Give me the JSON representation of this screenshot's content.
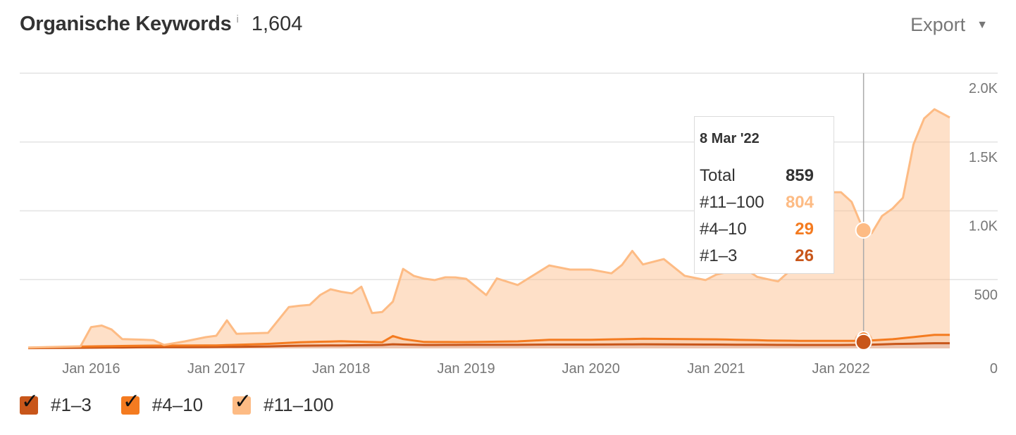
{
  "header": {
    "title": "Organische Keywords",
    "info_icon": "i",
    "count": "1,604",
    "export_label": "Export",
    "export_caret": "▼"
  },
  "tooltip": {
    "date": "8 Mar '22",
    "rows": [
      {
        "label": "Total",
        "value": "859",
        "color": "#333333"
      },
      {
        "label": "#11–100",
        "value": "804",
        "color": "#fdbb84"
      },
      {
        "label": "#4–10",
        "value": "29",
        "color": "#f47b20"
      },
      {
        "label": "#1–3",
        "value": "26",
        "color": "#c8561a"
      }
    ]
  },
  "legend": [
    {
      "label": "#1–3",
      "color": "#c8561a",
      "checked": true
    },
    {
      "label": "#4–10",
      "color": "#f47b20",
      "checked": true
    },
    {
      "label": "#11–100",
      "color": "#fdbb84",
      "checked": true
    }
  ],
  "chart_data": {
    "type": "area",
    "stacked": true,
    "title": "Organische Keywords",
    "xlabel": "",
    "ylabel": "",
    "y_axis_position": "right",
    "ylim": [
      0,
      2000
    ],
    "xlim": [
      "2015-07-01",
      "2022-11-15"
    ],
    "y_ticks": [
      0,
      500,
      1000,
      1500,
      2000
    ],
    "y_tick_labels": [
      "0",
      "500",
      "1.0K",
      "1.5K",
      "2.0K"
    ],
    "x_ticks": [
      "2016-01-01",
      "2017-01-01",
      "2018-01-01",
      "2019-01-01",
      "2020-01-01",
      "2021-01-01",
      "2022-01-01"
    ],
    "x_tick_labels": [
      "Jan 2016",
      "Jan 2017",
      "Jan 2018",
      "Jan 2019",
      "Jan 2020",
      "Jan 2021",
      "Jan 2022"
    ],
    "grid": true,
    "crosshair_date": "2022-03-08",
    "series": [
      {
        "name": "#1–3",
        "color": "#c8561a",
        "points": [
          [
            "2015-07-01",
            2
          ],
          [
            "2016-01-01",
            5
          ],
          [
            "2016-06-01",
            8
          ],
          [
            "2017-01-01",
            10
          ],
          [
            "2017-06-01",
            15
          ],
          [
            "2017-09-01",
            20
          ],
          [
            "2018-01-01",
            22
          ],
          [
            "2018-05-01",
            25
          ],
          [
            "2018-06-01",
            30
          ],
          [
            "2018-07-01",
            28
          ],
          [
            "2018-09-01",
            25
          ],
          [
            "2019-01-01",
            26
          ],
          [
            "2019-06-01",
            26
          ],
          [
            "2019-09-01",
            28
          ],
          [
            "2020-01-01",
            28
          ],
          [
            "2020-06-01",
            30
          ],
          [
            "2021-01-01",
            28
          ],
          [
            "2021-06-01",
            26
          ],
          [
            "2021-09-01",
            25
          ],
          [
            "2022-01-01",
            25
          ],
          [
            "2022-03-08",
            26
          ],
          [
            "2022-06-01",
            32
          ],
          [
            "2022-10-01",
            38
          ],
          [
            "2022-11-15",
            38
          ]
        ]
      },
      {
        "name": "#4–10",
        "color": "#f47b20",
        "points": [
          [
            "2015-07-01",
            3
          ],
          [
            "2016-01-01",
            10
          ],
          [
            "2016-06-01",
            12
          ],
          [
            "2017-01-01",
            12
          ],
          [
            "2017-06-01",
            18
          ],
          [
            "2017-09-01",
            25
          ],
          [
            "2018-01-01",
            30
          ],
          [
            "2018-05-01",
            20
          ],
          [
            "2018-06-01",
            60
          ],
          [
            "2018-07-01",
            40
          ],
          [
            "2018-09-01",
            22
          ],
          [
            "2019-01-01",
            20
          ],
          [
            "2019-06-01",
            25
          ],
          [
            "2019-09-01",
            35
          ],
          [
            "2020-01-01",
            35
          ],
          [
            "2020-06-01",
            40
          ],
          [
            "2021-01-01",
            38
          ],
          [
            "2021-06-01",
            32
          ],
          [
            "2021-09-01",
            30
          ],
          [
            "2022-01-01",
            30
          ],
          [
            "2022-03-08",
            29
          ],
          [
            "2022-06-01",
            35
          ],
          [
            "2022-10-01",
            60
          ],
          [
            "2022-11-15",
            60
          ]
        ]
      },
      {
        "name": "#11–100",
        "color": "#fdbb84",
        "points": [
          [
            "2015-07-01",
            1
          ],
          [
            "2015-12-01",
            2
          ],
          [
            "2016-01-01",
            140
          ],
          [
            "2016-02-01",
            150
          ],
          [
            "2016-03-01",
            120
          ],
          [
            "2016-04-01",
            50
          ],
          [
            "2016-07-01",
            40
          ],
          [
            "2016-08-01",
            5
          ],
          [
            "2016-10-01",
            30
          ],
          [
            "2016-12-01",
            60
          ],
          [
            "2017-01-01",
            70
          ],
          [
            "2017-02-01",
            180
          ],
          [
            "2017-03-01",
            80
          ],
          [
            "2017-06-01",
            80
          ],
          [
            "2017-08-01",
            260
          ],
          [
            "2017-10-01",
            270
          ],
          [
            "2017-11-01",
            340
          ],
          [
            "2017-12-01",
            380
          ],
          [
            "2018-01-01",
            360
          ],
          [
            "2018-02-01",
            350
          ],
          [
            "2018-03-01",
            400
          ],
          [
            "2018-04-01",
            210
          ],
          [
            "2018-05-01",
            220
          ],
          [
            "2018-06-01",
            250
          ],
          [
            "2018-07-01",
            510
          ],
          [
            "2018-08-01",
            470
          ],
          [
            "2018-09-01",
            460
          ],
          [
            "2018-10-01",
            450
          ],
          [
            "2018-11-01",
            470
          ],
          [
            "2018-12-01",
            470
          ],
          [
            "2019-01-01",
            460
          ],
          [
            "2019-03-01",
            340
          ],
          [
            "2019-04-01",
            460
          ],
          [
            "2019-06-01",
            410
          ],
          [
            "2019-09-01",
            540
          ],
          [
            "2019-11-01",
            510
          ],
          [
            "2020-01-01",
            510
          ],
          [
            "2020-03-01",
            480
          ],
          [
            "2020-04-01",
            540
          ],
          [
            "2020-05-01",
            640
          ],
          [
            "2020-06-01",
            540
          ],
          [
            "2020-08-01",
            580
          ],
          [
            "2020-10-01",
            460
          ],
          [
            "2020-12-01",
            430
          ],
          [
            "2021-01-01",
            470
          ],
          [
            "2021-02-01",
            490
          ],
          [
            "2021-03-01",
            560
          ],
          [
            "2021-05-01",
            460
          ],
          [
            "2021-07-01",
            430
          ],
          [
            "2021-08-01",
            500
          ],
          [
            "2021-09-01",
            580
          ],
          [
            "2021-10-01",
            920
          ],
          [
            "2021-12-01",
            1080
          ],
          [
            "2022-01-01",
            1080
          ],
          [
            "2022-02-01",
            1010
          ],
          [
            "2022-03-08",
            804
          ],
          [
            "2022-04-01",
            780
          ],
          [
            "2022-05-01",
            900
          ],
          [
            "2022-06-01",
            950
          ],
          [
            "2022-07-01",
            1020
          ],
          [
            "2022-08-01",
            1400
          ],
          [
            "2022-09-01",
            1580
          ],
          [
            "2022-10-01",
            1640
          ],
          [
            "2022-11-15",
            1580
          ]
        ]
      }
    ],
    "crosshair_values": {
      "total": 859,
      "#11–100": 804,
      "#4–10": 29,
      "#1–3": 26
    }
  }
}
